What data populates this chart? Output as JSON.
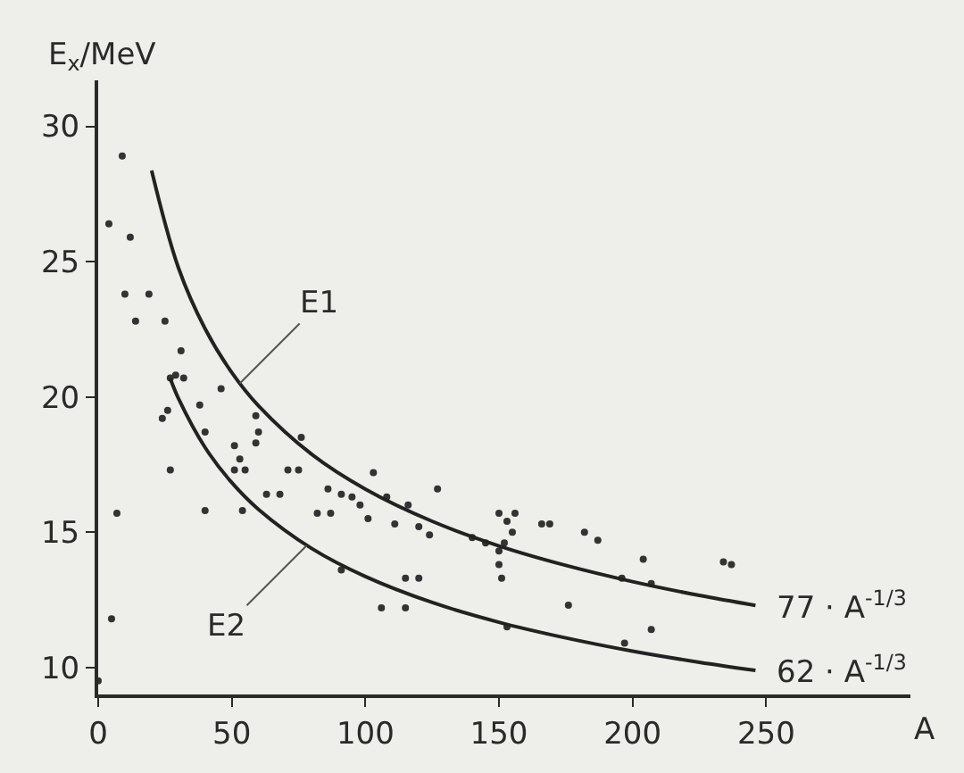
{
  "chart_data": {
    "type": "scatter",
    "xlabel": "A",
    "ylabel": "E$_{x}$/MeV",
    "xlim": [
      0,
      304
    ],
    "ylim": [
      9,
      31.7
    ],
    "xticks": [
      0,
      50,
      100,
      150,
      200,
      250
    ],
    "yticks": [
      10,
      15,
      20,
      25,
      30
    ],
    "grid": false,
    "series": [
      {
        "color": "#333333",
        "marker": "circle",
        "x": [
          9,
          4,
          12,
          10,
          19,
          14,
          25,
          31,
          29,
          27,
          32,
          46,
          38,
          59,
          24,
          40,
          60,
          76,
          51,
          59,
          27,
          51,
          55,
          71,
          75,
          53,
          103,
          127,
          86,
          91,
          95,
          63,
          68,
          108,
          98,
          116,
          82,
          87,
          101,
          111,
          120,
          124,
          7,
          5,
          106,
          115,
          91,
          0,
          40,
          26,
          54,
          115,
          120,
          150,
          156,
          153,
          166,
          169,
          182,
          187,
          155,
          140,
          145,
          150,
          152,
          150,
          151,
          204,
          207,
          196,
          234,
          237,
          176,
          153,
          197,
          207
        ],
        "values": [
          28.9,
          26.4,
          25.9,
          23.8,
          23.8,
          22.8,
          22.8,
          21.7,
          20.8,
          20.7,
          20.7,
          20.3,
          19.7,
          19.3,
          19.2,
          18.7,
          18.7,
          18.5,
          18.2,
          18.3,
          17.3,
          17.3,
          17.3,
          17.3,
          17.3,
          17.7,
          17.2,
          16.6,
          16.6,
          16.4,
          16.3,
          16.4,
          16.4,
          16.3,
          16.0,
          16.0,
          15.7,
          15.7,
          15.5,
          15.3,
          15.2,
          14.9,
          15.7,
          11.8,
          12.2,
          12.2,
          13.6,
          9.5,
          15.8,
          19.5,
          15.8,
          13.3,
          13.3,
          15.7,
          15.7,
          15.4,
          15.3,
          15.3,
          15.0,
          14.7,
          15.0,
          14.8,
          14.6,
          14.3,
          14.6,
          13.8,
          13.3,
          14.0,
          13.1,
          13.3,
          13.9,
          13.8,
          12.3,
          11.5,
          10.9,
          11.4
        ]
      },
      {
        "type": "line",
        "marker": "none",
        "color": "#222222",
        "x": [
          20,
          30,
          40,
          50,
          60,
          80,
          100,
          125,
          150,
          175,
          200,
          225,
          246
        ],
        "values": [
          28.37,
          24.78,
          22.52,
          20.9,
          19.67,
          17.87,
          16.59,
          15.4,
          14.49,
          13.77,
          13.17,
          12.66,
          12.29
        ]
      },
      {
        "type": "line",
        "marker": "none",
        "color": "#222222",
        "x": [
          27,
          30,
          40,
          50,
          60,
          80,
          100,
          125,
          150,
          175,
          200,
          225,
          246
        ],
        "values": [
          20.67,
          19.95,
          18.13,
          16.83,
          15.84,
          14.39,
          13.36,
          12.4,
          11.67,
          11.09,
          10.6,
          10.19,
          9.89
        ]
      }
    ],
    "annotations": [
      {
        "text": "E1",
        "x": 53,
        "y": 20.5
      },
      {
        "text": "E2",
        "x": 78,
        "y": 14.5
      },
      {
        "text": "77 · A$^{-1/3}$",
        "x": 246,
        "y": 12.29
      },
      {
        "text": "62 · A$^{-1/3}$",
        "x": 246,
        "y": 9.89
      }
    ]
  }
}
